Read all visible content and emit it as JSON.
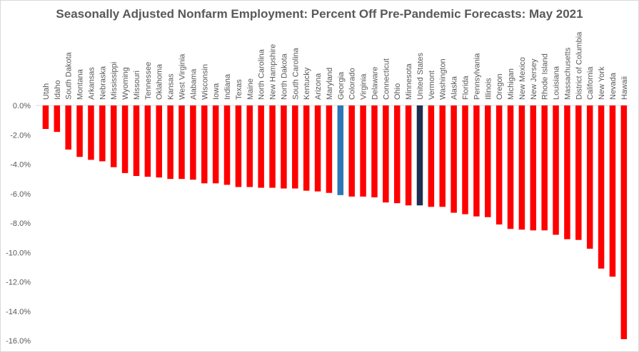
{
  "chart_data": {
    "type": "bar",
    "title": "Seasonally Adjusted Nonfarm Employment: Percent Off Pre-Pandemic Forecasts: May 2021",
    "xlabel": "",
    "ylabel": "",
    "ylim": [
      -16,
      0
    ],
    "yticks": [
      "0.0%",
      "-2.0%",
      "-4.0%",
      "-6.0%",
      "-8.0%",
      "-10.0%",
      "-12.0%",
      "-14.0%",
      "-16.0%"
    ],
    "grid": false,
    "legend": "none",
    "categories": [
      "Utah",
      "Idaho",
      "South Dakota",
      "Montana",
      "Arkansas",
      "Nebraska",
      "Mississippi",
      "Wyoming",
      "Missouri",
      "Tennessee",
      "Oklahoma",
      "Kansas",
      "West Virginia",
      "Alabama",
      "Wisconsin",
      "Iowa",
      "Indiana",
      "Texas",
      "Maine",
      "North Carolina",
      "New Hampshire",
      "North Dakota",
      "South Carolina",
      "Kentucky",
      "Arizona",
      "Maryland",
      "Georgia",
      "Colorado",
      "Virginia",
      "Delaware",
      "Connecticut",
      "Ohio",
      "Minnesota",
      "United States",
      "Vermont",
      "Washington",
      "Alaska",
      "Florida",
      "Pennsylvania",
      "Illinois",
      "Oregon",
      "Michigan",
      "New Mexico",
      "New Jersey",
      "Rhode Island",
      "Louisiana",
      "Massachusetts",
      "District of Columbia",
      "California",
      "New York",
      "Nevada",
      "Hawaii"
    ],
    "values": [
      -1.6,
      -1.8,
      -3.0,
      -3.5,
      -3.7,
      -3.8,
      -4.2,
      -4.6,
      -4.8,
      -4.85,
      -4.9,
      -5.0,
      -5.0,
      -5.05,
      -5.3,
      -5.3,
      -5.4,
      -5.55,
      -5.55,
      -5.6,
      -5.6,
      -5.65,
      -5.65,
      -5.8,
      -5.85,
      -5.95,
      -6.1,
      -6.2,
      -6.2,
      -6.25,
      -6.6,
      -6.65,
      -6.8,
      -6.8,
      -6.9,
      -6.9,
      -7.3,
      -7.4,
      -7.55,
      -7.6,
      -8.1,
      -8.4,
      -8.45,
      -8.5,
      -8.5,
      -8.8,
      -9.1,
      -9.15,
      -9.75,
      -11.1,
      -11.65,
      -15.9
    ],
    "colors": {
      "default": "#ff0000",
      "Georgia": "#2e75b6",
      "United States": "#1f2d4f"
    }
  }
}
